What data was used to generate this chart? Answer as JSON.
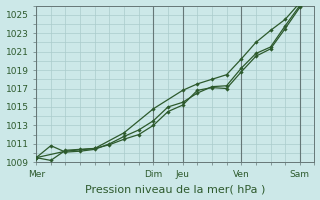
{
  "background_color": "#cce8e8",
  "grid_color": "#aacccc",
  "vline_color": "#667777",
  "line_color": "#2d5a2d",
  "xlabel": "Pression niveau de la mer( hPa )",
  "ylim": [
    1009,
    1026
  ],
  "yticks": [
    1009,
    1011,
    1013,
    1015,
    1017,
    1019,
    1021,
    1023,
    1025
  ],
  "xtick_labels": [
    "Mer",
    "Dim",
    "Jeu",
    "Ven",
    "Sam"
  ],
  "xtick_positions": [
    0,
    8,
    10,
    14,
    18
  ],
  "vline_positions": [
    0,
    8,
    10,
    14,
    18
  ],
  "xlim": [
    0,
    19
  ],
  "series1_x": [
    0,
    1,
    2,
    3,
    4,
    5,
    6,
    7,
    8,
    9,
    10,
    11,
    12,
    13,
    14,
    15,
    16,
    17,
    18
  ],
  "series1_y": [
    1009.5,
    1009.2,
    1010.3,
    1010.4,
    1010.5,
    1010.9,
    1011.5,
    1012.0,
    1013.0,
    1014.5,
    1015.2,
    1016.8,
    1017.1,
    1017.0,
    1018.8,
    1020.5,
    1021.3,
    1023.5,
    1025.8
  ],
  "series2_x": [
    0,
    1,
    2,
    3,
    4,
    5,
    6,
    7,
    8,
    9,
    10,
    11,
    12,
    13,
    14,
    15,
    16,
    17,
    18
  ],
  "series2_y": [
    1009.5,
    1010.8,
    1010.1,
    1010.2,
    1010.4,
    1011.0,
    1011.8,
    1012.5,
    1013.5,
    1015.0,
    1015.5,
    1016.5,
    1017.2,
    1017.3,
    1019.2,
    1020.8,
    1021.5,
    1023.8,
    1026.0
  ],
  "series3_x": [
    0,
    2,
    4,
    6,
    8,
    10,
    11,
    12,
    13,
    14,
    15,
    16,
    17,
    18
  ],
  "series3_y": [
    1009.5,
    1010.2,
    1010.5,
    1012.2,
    1014.8,
    1016.8,
    1017.5,
    1018.0,
    1018.5,
    1020.2,
    1022.0,
    1023.3,
    1024.5,
    1026.3
  ],
  "tick_fontsize": 6.5,
  "axis_fontsize": 8
}
